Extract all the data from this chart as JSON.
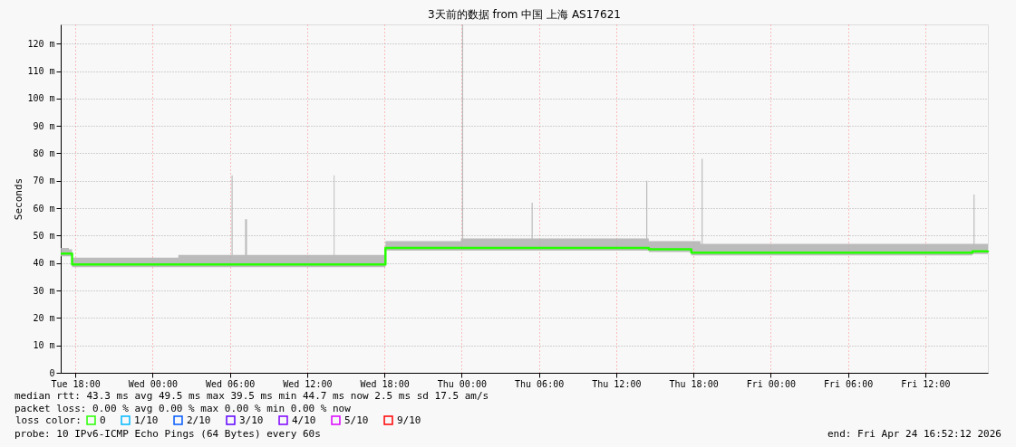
{
  "chart_data": {
    "type": "line",
    "title": "3天前的数据 from 中国 上海 AS17621",
    "ylabel": "Seconds",
    "xlim": [
      "2026-04-21T16:52",
      "2026-04-24T16:52"
    ],
    "xticks": [
      {
        "value": "2026-04-21T18:00",
        "label": "Tue 18:00"
      },
      {
        "value": "2026-04-22T00:00",
        "label": "Wed 00:00"
      },
      {
        "value": "2026-04-22T06:00",
        "label": "Wed 06:00"
      },
      {
        "value": "2026-04-22T12:00",
        "label": "Wed 12:00"
      },
      {
        "value": "2026-04-22T18:00",
        "label": "Wed 18:00"
      },
      {
        "value": "2026-04-23T00:00",
        "label": "Thu 00:00"
      },
      {
        "value": "2026-04-23T06:00",
        "label": "Thu 06:00"
      },
      {
        "value": "2026-04-23T12:00",
        "label": "Thu 12:00"
      },
      {
        "value": "2026-04-23T18:00",
        "label": "Thu 18:00"
      },
      {
        "value": "2026-04-24T00:00",
        "label": "Fri 00:00"
      },
      {
        "value": "2026-04-24T06:00",
        "label": "Fri 06:00"
      },
      {
        "value": "2026-04-24T12:00",
        "label": "Fri 12:00"
      }
    ],
    "ylim": [
      0,
      127
    ],
    "yticks": [
      0,
      {
        "value": 10,
        "label": "10 m"
      },
      {
        "value": 20,
        "label": "20 m"
      },
      {
        "value": 30,
        "label": "30 m"
      },
      {
        "value": 40,
        "label": "40 m"
      },
      {
        "value": 50,
        "label": "50 m"
      },
      {
        "value": 60,
        "label": "60 m"
      },
      {
        "value": 70,
        "label": "70 m"
      },
      {
        "value": 80,
        "label": "80 m"
      },
      {
        "value": 90,
        "label": "90 m"
      },
      {
        "value": 100,
        "label": "100 m"
      },
      {
        "value": 110,
        "label": "110 m"
      },
      {
        "value": 120,
        "label": "120 m"
      }
    ],
    "grid": true,
    "legend": "bottom",
    "legend_title": "loss color:",
    "series": [
      {
        "name": "0",
        "color": "#26ff00",
        "x": [
          "2026-04-21T16:52",
          "2026-04-21T17:30",
          "2026-04-21T17:45",
          "2026-04-22T02:00",
          "2026-04-22T06:03",
          "2026-04-22T06:08",
          "2026-04-22T06:13",
          "2026-04-22T07:11",
          "2026-04-22T07:20",
          "2026-04-22T14:00",
          "2026-04-22T14:04",
          "2026-04-22T14:08",
          "2026-04-22T18:00",
          "2026-04-22T18:05",
          "2026-04-22T23:57",
          "2026-04-23T00:02",
          "2026-04-23T00:07",
          "2026-04-23T05:21",
          "2026-04-23T05:26",
          "2026-04-23T05:31",
          "2026-04-23T14:15",
          "2026-04-23T14:20",
          "2026-04-23T14:25",
          "2026-04-23T14:32",
          "2026-04-23T17:50",
          "2026-04-23T18:33",
          "2026-04-23T18:38",
          "2026-04-23T18:43",
          "2026-04-24T15:40",
          "2026-04-24T15:45",
          "2026-04-24T15:50",
          "2026-04-24T16:52"
        ],
        "values": [
          43.5,
          43.5,
          39.5,
          39.5,
          39.5,
          39.5,
          39.5,
          39.5,
          39.5,
          39.5,
          39.5,
          39.5,
          39.5,
          45.5,
          45.5,
          45.5,
          45.5,
          45.5,
          45.5,
          45.5,
          45.5,
          45.5,
          45.5,
          45,
          43.8,
          43.8,
          43.8,
          43.8,
          44.3,
          44.3,
          44.3,
          44.5
        ],
        "lower": [
          42.5,
          42.5,
          38.5,
          38.5,
          38.5,
          38.5,
          38.5,
          38.5,
          38.5,
          38.5,
          38.5,
          38.5,
          38.5,
          44.5,
          44.5,
          44.5,
          44.5,
          44.5,
          44.5,
          44.5,
          44.5,
          44.5,
          44.5,
          44,
          42.8,
          42.8,
          42.8,
          42.8,
          43.3,
          43.3,
          43.3,
          43.5
        ],
        "upper": [
          45.5,
          45,
          42,
          43,
          43,
          72,
          43,
          56,
          43,
          43,
          72,
          43,
          43,
          48,
          49,
          127,
          49,
          49,
          62,
          49,
          49,
          70,
          49,
          48,
          48,
          47,
          78,
          47,
          47,
          65,
          47,
          47
        ]
      },
      {
        "name": "1/10",
        "color": "#00b8ff"
      },
      {
        "name": "2/10",
        "color": "#0059ff"
      },
      {
        "name": "3/10",
        "color": "#5e00ff"
      },
      {
        "name": "4/10",
        "color": "#7e00ff"
      },
      {
        "name": "5/10",
        "color": "#dd00ff"
      },
      {
        "name": "9/10",
        "color": "#ff0000"
      }
    ],
    "annotations": [
      "median rtt:  43.3 ms avg  49.5 ms max  39.5 ms min  44.7 ms now  2.5 ms sd  17.5   am/s",
      "packet loss: 0.00 % avg  0.00 % max  0.00 % min  0.00 % now",
      "probe:       10 IPv6-ICMP Echo Pings (64 Bytes) every 60s",
      "end: Fri Apr 24 16:52:12 2026"
    ]
  }
}
